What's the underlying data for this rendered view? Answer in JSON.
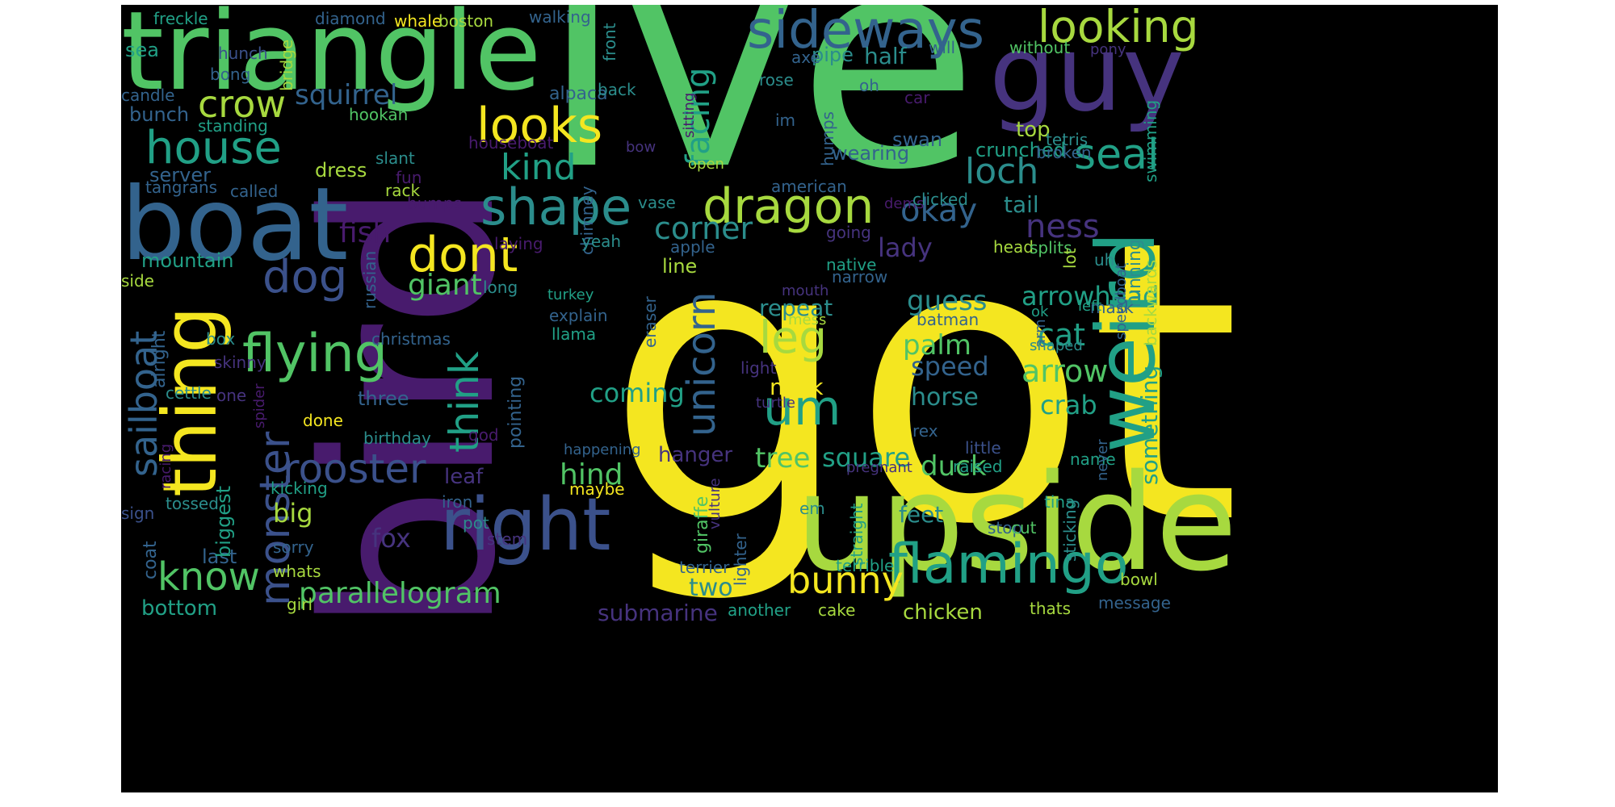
{
  "palette": {
    "yellow": "#f4e620",
    "lime": "#a7d93f",
    "green": "#51c465",
    "teal": "#21a086",
    "cyan": "#2b8d8c",
    "blue": "#33638d",
    "indigo": "#3b518b",
    "purple": "#46337e",
    "violet": "#481b6d",
    "background": "#000000"
  },
  "words": [
    {
      "text": "got",
      "color": "yellow"
    },
    {
      "text": "ive",
      "color": "green"
    },
    {
      "text": "bird",
      "color": "violet",
      "vertical": true
    },
    {
      "text": "upside",
      "color": "lime"
    },
    {
      "text": "triangle",
      "color": "green"
    },
    {
      "text": "boat",
      "color": "blue"
    },
    {
      "text": "guy",
      "color": "purple"
    },
    {
      "text": "weird",
      "color": "teal",
      "vertical": true
    },
    {
      "text": "thing",
      "color": "yellow",
      "vertical": true
    },
    {
      "text": "right",
      "color": "indigo"
    },
    {
      "text": "flamingo",
      "color": "teal"
    },
    {
      "text": "sideways",
      "color": "blue"
    },
    {
      "text": "looking",
      "color": "lime"
    },
    {
      "text": "looks",
      "color": "yellow"
    },
    {
      "text": "house",
      "color": "teal"
    },
    {
      "text": "shape",
      "color": "cyan"
    },
    {
      "text": "dragon",
      "color": "lime"
    },
    {
      "text": "flying",
      "color": "green"
    },
    {
      "text": "dont",
      "color": "yellow"
    },
    {
      "text": "seal",
      "color": "teal"
    },
    {
      "text": "crow",
      "color": "lime"
    },
    {
      "text": "dog",
      "color": "indigo"
    },
    {
      "text": "monster",
      "color": "indigo",
      "vertical": true
    },
    {
      "text": "know",
      "color": "green"
    },
    {
      "text": "rooster",
      "color": "indigo"
    },
    {
      "text": "parallelogram",
      "color": "green"
    },
    {
      "text": "um",
      "color": "teal"
    },
    {
      "text": "leg",
      "color": "lime"
    },
    {
      "text": "unicorn",
      "color": "blue",
      "vertical": true
    },
    {
      "text": "bunny",
      "color": "yellow"
    },
    {
      "text": "think",
      "color": "teal",
      "vertical": true
    },
    {
      "text": "sailboat",
      "color": "blue",
      "vertical": true
    },
    {
      "text": "squirrel",
      "color": "blue"
    },
    {
      "text": "loch",
      "color": "cyan"
    },
    {
      "text": "okay",
      "color": "blue"
    },
    {
      "text": "kind",
      "color": "teal"
    },
    {
      "text": "facing",
      "color": "teal",
      "vertical": true
    },
    {
      "text": "ness",
      "color": "purple"
    },
    {
      "text": "corner",
      "color": "cyan"
    },
    {
      "text": "giant",
      "color": "green"
    },
    {
      "text": "fish",
      "color": "violet"
    },
    {
      "text": "lady",
      "color": "purple"
    },
    {
      "text": "guess",
      "color": "cyan"
    },
    {
      "text": "cat",
      "color": "teal"
    },
    {
      "text": "arrow",
      "color": "green"
    },
    {
      "text": "arrowhead",
      "color": "teal"
    },
    {
      "text": "palm",
      "color": "green"
    },
    {
      "text": "speed",
      "color": "blue"
    },
    {
      "text": "crab",
      "color": "teal"
    },
    {
      "text": "horse",
      "color": "cyan"
    },
    {
      "text": "tree",
      "color": "green"
    },
    {
      "text": "square",
      "color": "teal"
    },
    {
      "text": "duck",
      "color": "green"
    },
    {
      "text": "hind",
      "color": "green"
    },
    {
      "text": "coming",
      "color": "teal"
    },
    {
      "text": "neck",
      "color": "yellow"
    },
    {
      "text": "repeat",
      "color": "cyan"
    },
    {
      "text": "fox",
      "color": "purple"
    },
    {
      "text": "big",
      "color": "lime"
    },
    {
      "text": "two",
      "color": "cyan"
    },
    {
      "text": "feet",
      "color": "cyan"
    },
    {
      "text": "submarine",
      "color": "purple"
    },
    {
      "text": "chicken",
      "color": "lime"
    },
    {
      "text": "bottom",
      "color": "teal"
    },
    {
      "text": "hanger",
      "color": "purple"
    },
    {
      "text": "something",
      "color": "teal",
      "vertical": true
    },
    {
      "text": "half",
      "color": "cyan"
    },
    {
      "text": "top",
      "color": "lime"
    },
    {
      "text": "tail",
      "color": "cyan"
    },
    {
      "text": "crunched",
      "color": "teal"
    },
    {
      "text": "mountain",
      "color": "teal"
    },
    {
      "text": "server",
      "color": "blue"
    },
    {
      "text": "bunch",
      "color": "blue"
    },
    {
      "text": "dress",
      "color": "lime"
    },
    {
      "text": "three",
      "color": "blue"
    },
    {
      "text": "alpaca",
      "color": "blue"
    },
    {
      "text": "pipe",
      "color": "cyan"
    },
    {
      "text": "swan",
      "color": "blue"
    },
    {
      "text": "wearing",
      "color": "blue"
    },
    {
      "text": "running",
      "color": "cyan",
      "vertical": true
    },
    {
      "text": "sea",
      "color": "teal"
    },
    {
      "text": "leaf",
      "color": "purple"
    },
    {
      "text": "last",
      "color": "blue"
    },
    {
      "text": "line",
      "color": "lime"
    },
    {
      "text": "pointing",
      "color": "blue",
      "vertical": true
    },
    {
      "text": "biggest",
      "color": "teal",
      "vertical": true
    },
    {
      "text": "alright",
      "color": "blue",
      "vertical": true
    },
    {
      "text": "coat",
      "color": "blue",
      "vertical": true
    },
    {
      "text": "iron",
      "color": "blue"
    },
    {
      "text": "sorry",
      "color": "blue"
    },
    {
      "text": "whats",
      "color": "lime"
    },
    {
      "text": "stop",
      "color": "blue"
    },
    {
      "text": "uh",
      "color": "cyan"
    },
    {
      "text": "batman",
      "color": "blue"
    },
    {
      "text": "mask",
      "color": "blue"
    },
    {
      "text": "tetris",
      "color": "cyan"
    },
    {
      "text": "swimming",
      "color": "teal",
      "vertical": true
    },
    {
      "text": "broken",
      "color": "blue"
    },
    {
      "text": "racing",
      "color": "violet",
      "vertical": true
    },
    {
      "text": "kicking",
      "color": "teal"
    },
    {
      "text": "birthday",
      "color": "cyan"
    },
    {
      "text": "christmas",
      "color": "blue"
    },
    {
      "text": "cettle",
      "color": "cyan"
    },
    {
      "text": "tossed",
      "color": "cyan"
    },
    {
      "text": "sign",
      "color": "indigo"
    },
    {
      "text": "box",
      "color": "cyan"
    },
    {
      "text": "skinny",
      "color": "purple"
    },
    {
      "text": "side",
      "color": "lime"
    },
    {
      "text": "standing",
      "color": "teal"
    },
    {
      "text": "candle",
      "color": "blue"
    },
    {
      "text": "hookah",
      "color": "green"
    },
    {
      "text": "houseboat",
      "color": "violet"
    },
    {
      "text": "slant",
      "color": "cyan"
    },
    {
      "text": "fun",
      "color": "violet"
    },
    {
      "text": "rack",
      "color": "lime"
    },
    {
      "text": "called",
      "color": "blue"
    },
    {
      "text": "tangrans",
      "color": "blue"
    },
    {
      "text": "bong",
      "color": "blue"
    },
    {
      "text": "hunch",
      "color": "indigo"
    },
    {
      "text": "bridge",
      "color": "lime",
      "vertical": true
    },
    {
      "text": "freckle",
      "color": "teal"
    },
    {
      "text": "diamond",
      "color": "blue"
    },
    {
      "text": "whale",
      "color": "yellow"
    },
    {
      "text": "boston",
      "color": "lime"
    },
    {
      "text": "walking",
      "color": "blue"
    },
    {
      "text": "front",
      "color": "cyan",
      "vertical": true
    },
    {
      "text": "will",
      "color": "blue"
    },
    {
      "text": "without",
      "color": "green"
    },
    {
      "text": "pony",
      "color": "purple"
    },
    {
      "text": "axe",
      "color": "blue"
    },
    {
      "text": "oh",
      "color": "blue"
    },
    {
      "text": "rose",
      "color": "cyan"
    },
    {
      "text": "im",
      "color": "blue"
    },
    {
      "text": "car",
      "color": "violet"
    },
    {
      "text": "sitting",
      "color": "violet",
      "vertical": true
    },
    {
      "text": "humps",
      "color": "blue",
      "vertical": true
    },
    {
      "text": "back",
      "color": "cyan"
    },
    {
      "text": "bow",
      "color": "purple"
    },
    {
      "text": "open",
      "color": "lime"
    },
    {
      "text": "vase",
      "color": "cyan"
    },
    {
      "text": "american",
      "color": "blue"
    },
    {
      "text": "dems",
      "color": "violet"
    },
    {
      "text": "clicked",
      "color": "cyan"
    },
    {
      "text": "going",
      "color": "purple"
    },
    {
      "text": "apple",
      "color": "blue"
    },
    {
      "text": "native",
      "color": "teal"
    },
    {
      "text": "narrow",
      "color": "blue"
    },
    {
      "text": "chimney",
      "color": "blue",
      "vertical": true
    },
    {
      "text": "bumps",
      "color": "violet"
    },
    {
      "text": "laying",
      "color": "violet"
    },
    {
      "text": "yeah",
      "color": "cyan"
    },
    {
      "text": "russian",
      "color": "blue",
      "vertical": true
    },
    {
      "text": "long",
      "color": "cyan"
    },
    {
      "text": "turkey",
      "color": "teal"
    },
    {
      "text": "explain",
      "color": "blue"
    },
    {
      "text": "llama",
      "color": "teal"
    },
    {
      "text": "eraser",
      "color": "blue",
      "vertical": true
    },
    {
      "text": "mouth",
      "color": "purple"
    },
    {
      "text": "mess",
      "color": "lime"
    },
    {
      "text": "light",
      "color": "purple"
    },
    {
      "text": "turtle",
      "color": "purple"
    },
    {
      "text": "head",
      "color": "lime"
    },
    {
      "text": "splits",
      "color": "green"
    },
    {
      "text": "lot",
      "color": "lime",
      "vertical": true
    },
    {
      "text": "left",
      "color": "teal"
    },
    {
      "text": "ok",
      "color": "teal"
    },
    {
      "text": "arm",
      "color": "blue",
      "vertical": true
    },
    {
      "text": "shaped",
      "color": "cyan"
    },
    {
      "text": "speedboat",
      "color": "blue",
      "vertical": true
    },
    {
      "text": "backwards",
      "color": "lime",
      "vertical": true
    },
    {
      "text": "spider",
      "color": "violet",
      "vertical": true
    },
    {
      "text": "done",
      "color": "yellow"
    },
    {
      "text": "one",
      "color": "purple"
    },
    {
      "text": "god",
      "color": "violet"
    },
    {
      "text": "happening",
      "color": "blue"
    },
    {
      "text": "maybe",
      "color": "yellow"
    },
    {
      "text": "rex",
      "color": "blue"
    },
    {
      "text": "little",
      "color": "indigo"
    },
    {
      "text": "pregnant",
      "color": "purple"
    },
    {
      "text": "raised",
      "color": "teal"
    },
    {
      "text": "name",
      "color": "teal"
    },
    {
      "text": "tina",
      "color": "teal"
    },
    {
      "text": "never",
      "color": "blue",
      "vertical": true
    },
    {
      "text": "em",
      "color": "cyan"
    },
    {
      "text": "giraffe",
      "color": "green",
      "vertical": true
    },
    {
      "text": "vulture",
      "color": "purple",
      "vertical": true
    },
    {
      "text": "lighter",
      "color": "blue",
      "vertical": true
    },
    {
      "text": "straight",
      "color": "teal",
      "vertical": true
    },
    {
      "text": "terrier",
      "color": "blue"
    },
    {
      "text": "terrible",
      "color": "teal"
    },
    {
      "text": "cut",
      "color": "green"
    },
    {
      "text": "sticking",
      "color": "cyan",
      "vertical": true
    },
    {
      "text": "bowl",
      "color": "lime"
    },
    {
      "text": "message",
      "color": "blue"
    },
    {
      "text": "thats",
      "color": "lime"
    },
    {
      "text": "cake",
      "color": "lime"
    },
    {
      "text": "another",
      "color": "teal"
    },
    {
      "text": "stem",
      "color": "purple"
    },
    {
      "text": "pot",
      "color": "cyan"
    },
    {
      "text": "girl",
      "color": "lime"
    }
  ]
}
